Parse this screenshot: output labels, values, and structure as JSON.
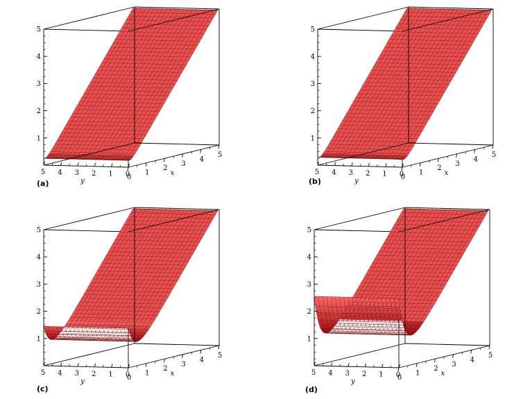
{
  "chart_data": [
    {
      "type": "surface3d",
      "label": "(a)",
      "xlabel": "x",
      "ylabel": "y",
      "zlabel": "",
      "xlim": [
        0,
        5
      ],
      "ylim": [
        0,
        5
      ],
      "zlim": [
        0,
        5
      ],
      "x_ticks": [
        "0",
        "1",
        "2",
        "3",
        "4",
        "5"
      ],
      "y_ticks": [
        "5",
        "4",
        "3",
        "2",
        "1",
        "0"
      ],
      "z_ticks": [
        "1",
        "2",
        "3",
        "4",
        "5"
      ],
      "boundary_layer": {
        "height_at_x0": 0.2,
        "width": 0.15
      },
      "surface_color": "#e85050",
      "mesh_color": "#7a1010"
    },
    {
      "type": "surface3d",
      "label": "(b)",
      "xlabel": "x",
      "ylabel": "y",
      "zlabel": "",
      "xlim": [
        0,
        5
      ],
      "ylim": [
        0,
        5
      ],
      "zlim": [
        0,
        5
      ],
      "x_ticks": [
        "0",
        "1",
        "2",
        "3",
        "4",
        "5"
      ],
      "y_ticks": [
        "5",
        "4",
        "3",
        "2",
        "1",
        "0"
      ],
      "z_ticks": [
        "1",
        "2",
        "3",
        "4",
        "5"
      ],
      "boundary_layer": {
        "height_at_x0": 0.25,
        "width": 0.15
      },
      "surface_color": "#e85050",
      "mesh_color": "#7a1010"
    },
    {
      "type": "surface3d",
      "label": "(c)",
      "xlabel": "x",
      "ylabel": "y",
      "zlabel": "",
      "xlim": [
        0,
        5
      ],
      "ylim": [
        0,
        5
      ],
      "zlim": [
        0,
        5
      ],
      "x_ticks": [
        "0",
        "1",
        "2",
        "3",
        "4",
        "5"
      ],
      "y_ticks": [
        "5",
        "4",
        "3",
        "2",
        "1",
        "0"
      ],
      "z_ticks": [
        "1",
        "2",
        "3",
        "4",
        "5"
      ],
      "boundary_layer": {
        "height_at_x0": 1.4,
        "width": 0.35
      },
      "surface_color": "#e85050",
      "mesh_color": "#7a1010"
    },
    {
      "type": "surface3d",
      "label": "(d)",
      "xlabel": "x",
      "ylabel": "y",
      "zlabel": "",
      "xlim": [
        0,
        5
      ],
      "ylim": [
        0,
        5
      ],
      "zlim": [
        0,
        5
      ],
      "x_ticks": [
        "0",
        "1",
        "2",
        "3",
        "4",
        "5"
      ],
      "y_ticks": [
        "5",
        "4",
        "3",
        "2",
        "1",
        "0"
      ],
      "z_ticks": [
        "1",
        "2",
        "3",
        "4",
        "5"
      ],
      "boundary_layer": {
        "height_at_x0": 2.5,
        "width": 0.35
      },
      "surface_color": "#e85050",
      "mesh_color": "#7a1010"
    }
  ]
}
